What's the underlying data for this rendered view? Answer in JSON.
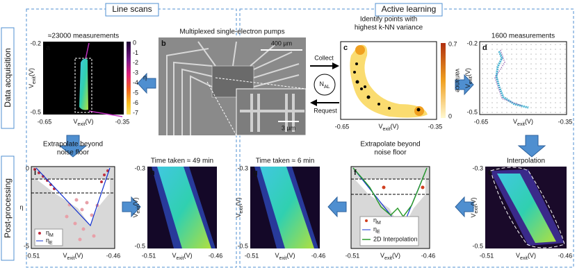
{
  "sections": {
    "line_scans": "Line scans",
    "active_learning": "Active learning"
  },
  "rows": {
    "data_acquisition": "Data acquisition",
    "post_processing": "Post-processing"
  },
  "axis_label": [
    "V",
    "exit",
    "(V)"
  ],
  "panels": {
    "a": {
      "letter": "a",
      "title": "≈23000 measurements",
      "yticks": [
        -0.2,
        -0.5
      ],
      "xticks": [
        -0.65,
        -0.35
      ],
      "colorbar_label": "η",
      "colorbar_ticks": [
        0,
        -1,
        -2,
        -3,
        -4,
        -5,
        -6,
        -7
      ]
    },
    "b": {
      "letter": "b",
      "title": "Multiplexed single-electron pumps",
      "scale_main": "400 µm",
      "scale_inset": "3 µm"
    },
    "c": {
      "letter": "c",
      "title": [
        "Identify points with",
        "highest k-NN variance"
      ],
      "xticks": [
        -0.65,
        -0.35
      ],
      "colorbar_label": "variance",
      "colorbar_ticks": [
        0.7,
        0
      ]
    },
    "d": {
      "letter": "d",
      "title": "1600 measurements",
      "yticks": [
        -0.2,
        -0.5
      ],
      "xticks": [
        -0.65,
        -0.35
      ]
    },
    "e": {
      "letter": "e",
      "title": "Interpolation",
      "yticks": [
        -0.3,
        -0.5
      ],
      "xticks": [
        -0.51,
        -0.46
      ]
    },
    "f": {
      "letter": "f",
      "title": [
        "Extrapolate beyond",
        "noise floor"
      ],
      "xticks": [
        -0.51,
        -0.46
      ],
      "legend": {
        "measured": [
          "η",
          "M"
        ],
        "extrapolated": [
          "η",
          "E"
        ],
        "interpolation": "2D Interpolation"
      }
    },
    "g": {
      "letter": "g",
      "title": "Time taken ≈ 6 min",
      "yticks": [
        -0.3,
        -0.5
      ],
      "xticks": [
        -0.51,
        -0.46
      ]
    },
    "h": {
      "letter": "h",
      "title": "Time taken ≈ 49 min",
      "yticks": [
        -0.3,
        -0.5
      ],
      "xticks": [
        -0.51,
        -0.46
      ]
    },
    "i": {
      "letter": "i",
      "title": [
        "Extrapolate beyond",
        "noise floor"
      ],
      "yticks": [
        0,
        -5
      ],
      "xticks": [
        -0.51,
        -0.46
      ],
      "y_label": "η",
      "legend": {
        "measured": [
          "η",
          "M"
        ],
        "extrapolated": [
          "η",
          "E"
        ]
      }
    }
  },
  "loop": {
    "collect": "Collect",
    "request": "Request",
    "n_al": [
      "N",
      "AL"
    ]
  }
}
